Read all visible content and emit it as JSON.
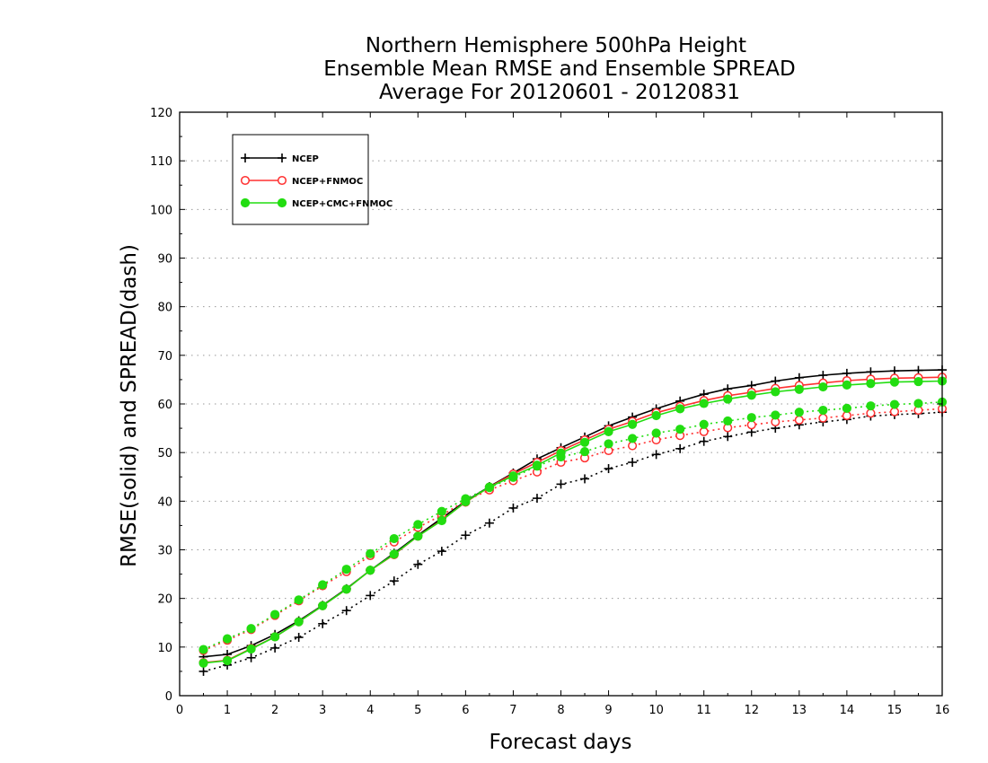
{
  "chart_data": {
    "type": "line",
    "title": [
      "Northern Hemisphere 500hPa Height",
      "Ensemble Mean RMSE and Ensemble SPREAD",
      "Average For 20120601 - 20120831"
    ],
    "xlabel": "Forecast days",
    "ylabel": "RMSE(solid) and SPREAD(dash)",
    "xlim": [
      0,
      16
    ],
    "ylim": [
      0,
      120
    ],
    "xticks": [
      0,
      1,
      2,
      3,
      4,
      5,
      6,
      7,
      8,
      9,
      10,
      11,
      12,
      13,
      14,
      15,
      16
    ],
    "yticks": [
      0,
      10,
      20,
      30,
      40,
      50,
      60,
      70,
      80,
      90,
      100,
      110,
      120
    ],
    "grid": "horizontal dotted",
    "legend_position": "top-left",
    "x": [
      0.5,
      1,
      1.5,
      2,
      2.5,
      3,
      3.5,
      4,
      4.5,
      5,
      5.5,
      6,
      6.5,
      7,
      7.5,
      8,
      8.5,
      9,
      9.5,
      10,
      10.5,
      11,
      11.5,
      12,
      12.5,
      13,
      13.5,
      14,
      14.5,
      15,
      15.5,
      16
    ],
    "series": [
      {
        "name": "NCEP",
        "color": "#000000",
        "marker": "plus",
        "rmse": [
          8.0,
          8.5,
          10.3,
          12.6,
          15.4,
          18.6,
          22.0,
          25.8,
          29.3,
          33.0,
          36.5,
          40.0,
          43.0,
          45.8,
          48.7,
          51.0,
          53.2,
          55.5,
          57.3,
          59.0,
          60.6,
          62.0,
          63.1,
          63.8,
          64.7,
          65.4,
          65.9,
          66.3,
          66.6,
          66.8,
          66.9,
          67.0
        ],
        "spread": [
          5.0,
          6.3,
          7.8,
          9.8,
          12.0,
          14.8,
          17.5,
          20.6,
          23.6,
          27.0,
          29.7,
          33.0,
          35.5,
          38.6,
          40.6,
          43.5,
          44.6,
          46.7,
          48.0,
          49.6,
          50.8,
          52.3,
          53.3,
          54.2,
          55.0,
          55.7,
          56.3,
          56.8,
          57.5,
          57.8,
          58.0,
          58.3
        ]
      },
      {
        "name": "NCEP+FNMOC",
        "color": "#ff3030",
        "marker": "circle-open",
        "rmse": [
          6.8,
          7.3,
          9.7,
          12.1,
          15.2,
          18.5,
          21.9,
          25.8,
          29.0,
          32.8,
          36.1,
          39.8,
          42.9,
          45.6,
          48.0,
          50.4,
          52.6,
          54.8,
          56.4,
          58.2,
          59.5,
          60.7,
          61.7,
          62.4,
          63.2,
          63.8,
          64.3,
          64.8,
          65.1,
          65.3,
          65.4,
          65.5
        ],
        "spread": [
          9.3,
          11.4,
          13.6,
          16.5,
          19.5,
          22.6,
          25.5,
          28.8,
          31.6,
          34.6,
          37.1,
          40.1,
          42.3,
          44.2,
          46.0,
          48.0,
          48.9,
          50.4,
          51.4,
          52.6,
          53.5,
          54.3,
          55.1,
          55.7,
          56.3,
          56.7,
          57.1,
          57.6,
          58.1,
          58.4,
          58.7,
          59.0
        ]
      },
      {
        "name": "NCEP+CMC+FNMOC",
        "color": "#22dd11",
        "marker": "circle-filled",
        "rmse": [
          6.7,
          7.2,
          9.6,
          12.1,
          15.2,
          18.5,
          21.9,
          25.8,
          29.1,
          32.8,
          36.0,
          39.9,
          42.9,
          45.2,
          47.4,
          49.9,
          52.1,
          54.3,
          55.8,
          57.6,
          59.0,
          60.1,
          61.0,
          61.8,
          62.5,
          63.0,
          63.5,
          63.9,
          64.2,
          64.5,
          64.6,
          64.7
        ],
        "spread": [
          9.5,
          11.7,
          13.8,
          16.7,
          19.7,
          22.8,
          26.0,
          29.2,
          32.3,
          35.2,
          37.9,
          40.5,
          42.8,
          44.9,
          47.2,
          49.1,
          50.2,
          51.8,
          52.9,
          54.0,
          54.8,
          55.8,
          56.5,
          57.2,
          57.7,
          58.3,
          58.7,
          59.1,
          59.6,
          59.9,
          60.1,
          60.4
        ]
      }
    ]
  }
}
